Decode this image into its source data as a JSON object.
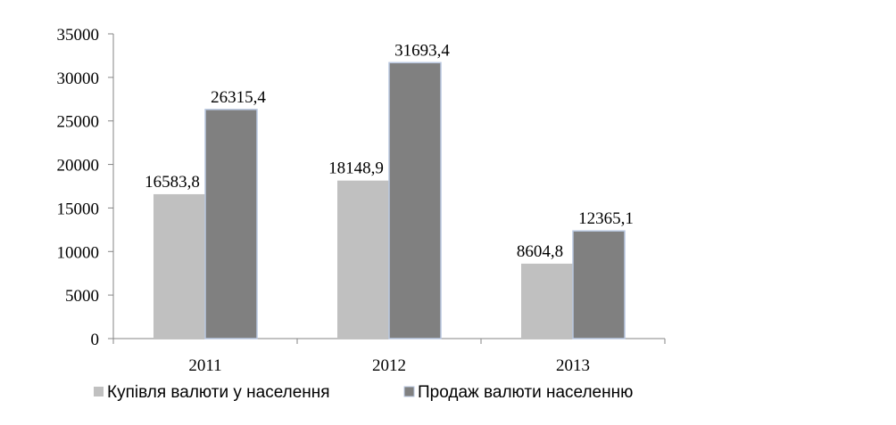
{
  "chart_data": {
    "type": "bar",
    "categories": [
      "2011",
      "2012",
      "2013"
    ],
    "series": [
      {
        "name": "Купівля валюти у населення",
        "color": "#c0c0c0",
        "values": [
          16583.8,
          18148.9,
          8604.8
        ],
        "value_labels": [
          "16583,8",
          "18148,9",
          "8604,8"
        ]
      },
      {
        "name": "Продаж валюти населенню",
        "color": "#808080",
        "values": [
          26315.4,
          31693.4,
          12365.1
        ],
        "value_labels": [
          "26315,4",
          "31693,4",
          "12365,1"
        ]
      }
    ],
    "ylim": [
      0,
      35000
    ],
    "yticks": [
      0,
      5000,
      10000,
      15000,
      20000,
      25000,
      30000,
      35000
    ],
    "grid": false,
    "legend": "bottom"
  }
}
